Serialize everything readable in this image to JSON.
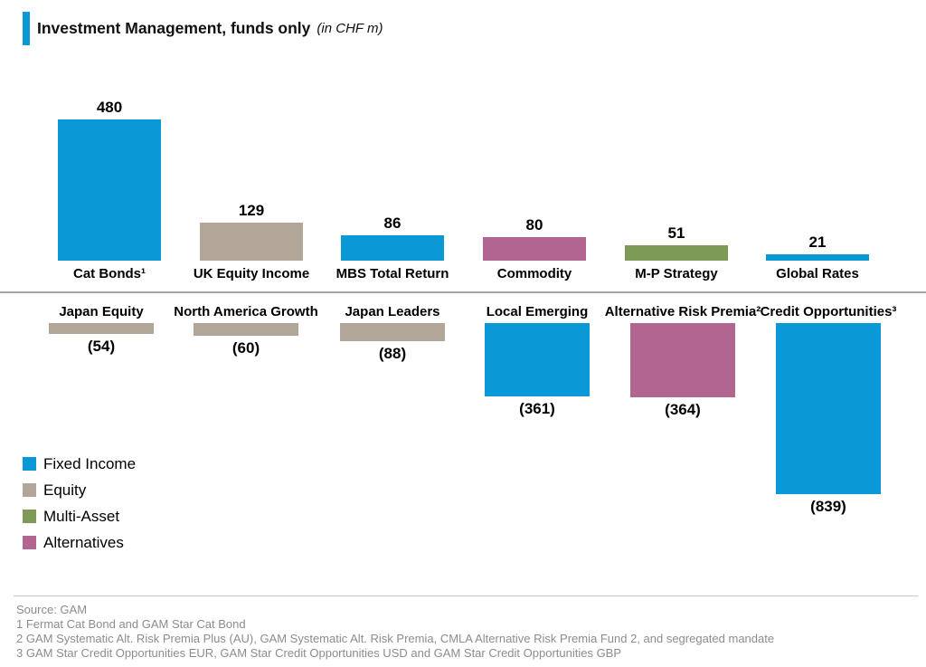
{
  "header": {
    "title": "Investment Management, funds only",
    "subtitle": "(in CHF m)",
    "accent_color": "#0a99d6"
  },
  "chart_data": {
    "type": "bar",
    "orientation": "diverging-vertical",
    "title": "Investment Management, funds only",
    "unit": "CHF m",
    "axes": "none",
    "gridlines": false,
    "legend_position": "bottom-left",
    "legend": [
      {
        "label": "Fixed Income",
        "color": "#0a99d6"
      },
      {
        "label": "Equity",
        "color": "#b2a698"
      },
      {
        "label": "Multi-Asset",
        "color": "#7d9a57"
      },
      {
        "label": "Alternatives",
        "color": "#b26590"
      }
    ],
    "series": [
      {
        "name": "Inflows",
        "bars": [
          {
            "label": "Cat Bonds¹",
            "value": 480,
            "display": "480",
            "category": "Fixed Income"
          },
          {
            "label": "UK Equity Income",
            "value": 129,
            "display": "129",
            "category": "Equity"
          },
          {
            "label": "MBS Total Return",
            "value": 86,
            "display": "86",
            "category": "Fixed Income"
          },
          {
            "label": "Commodity",
            "value": 80,
            "display": "80",
            "category": "Alternatives"
          },
          {
            "label": "M-P Strategy",
            "value": 51,
            "display": "51",
            "category": "Multi-Asset"
          },
          {
            "label": "Global Rates",
            "value": 21,
            "display": "21",
            "category": "Fixed Income"
          }
        ]
      },
      {
        "name": "Outflows",
        "bars": [
          {
            "label": "Japan Equity",
            "value": -54,
            "display": "(54)",
            "category": "Equity"
          },
          {
            "label": "North America Growth",
            "value": -60,
            "display": "(60)",
            "category": "Equity"
          },
          {
            "label": "Japan Leaders",
            "value": -88,
            "display": "(88)",
            "category": "Equity"
          },
          {
            "label": "Local Emerging",
            "value": -361,
            "display": "(361)",
            "category": "Fixed Income"
          },
          {
            "label": "Alternative Risk Premia²",
            "value": -364,
            "display": "(364)",
            "category": "Alternatives"
          },
          {
            "label": "Credit Opportunities³",
            "value": -839,
            "display": "(839)",
            "category": "Fixed Income"
          }
        ]
      }
    ]
  },
  "footer": {
    "lines": [
      "Source: GAM",
      "1 Fermat Cat Bond and GAM Star Cat Bond",
      "2 GAM Systematic Alt. Risk Premia Plus (AU), GAM Systematic Alt. Risk Premia, CMLA Alternative Risk Premia Fund 2, and segregated mandate",
      "3 GAM Star Credit Opportunities EUR, GAM Star Credit Opportunities USD and GAM Star Credit Opportunities GBP"
    ]
  }
}
